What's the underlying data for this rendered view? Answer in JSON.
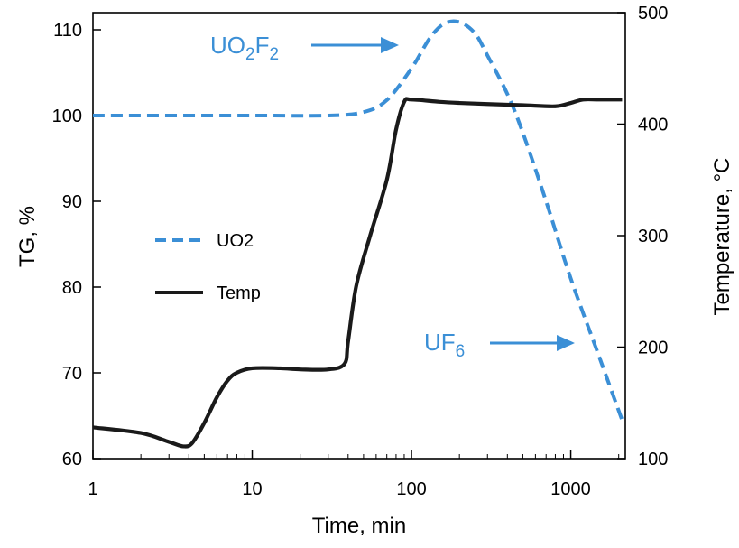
{
  "chart_data": {
    "type": "line",
    "xscale": "log",
    "xlim": [
      1,
      2200
    ],
    "ylim_left": [
      60,
      112
    ],
    "ylim_right": [
      100,
      500
    ],
    "xlabel": "Time, min",
    "ylabel_left": "TG, %",
    "ylabel_right": "Temperature, °C",
    "x_ticks": [
      1,
      10,
      100,
      1000
    ],
    "x_tick_labels": [
      "1",
      "10",
      "100",
      "1000"
    ],
    "y_left_ticks": [
      60,
      70,
      80,
      90,
      100,
      110
    ],
    "y_left_tick_labels": [
      "60",
      "70",
      "80",
      "90",
      "100",
      "110"
    ],
    "y_right_ticks": [
      100,
      200,
      300,
      400,
      500
    ],
    "y_right_tick_labels": [
      "100",
      "200",
      "300",
      "400",
      "500"
    ],
    "grid": false,
    "legend_position": "left-middle",
    "series": [
      {
        "name": "UO2",
        "axis": "left",
        "style": "dashed",
        "color": "#3b8fd6",
        "x": [
          1,
          10,
          30,
          50,
          70,
          100,
          130,
          160,
          200,
          250,
          300,
          400,
          500,
          700,
          1000,
          1500,
          2100
        ],
        "y": [
          100.0,
          100.0,
          100.0,
          100.4,
          101.8,
          105.5,
          109.0,
          110.7,
          110.9,
          109.6,
          107.0,
          102.5,
          98.0,
          90.0,
          81.0,
          72.0,
          64.5
        ]
      },
      {
        "name": "Temp",
        "axis": "right",
        "style": "solid",
        "color": "#1a1a1a",
        "x": [
          1,
          2,
          3,
          3.7,
          4.2,
          5,
          6,
          7,
          8,
          10,
          15,
          20,
          30,
          38,
          40,
          45,
          55,
          70,
          80,
          90,
          100,
          150,
          200,
          300,
          500,
          800,
          1000,
          1200,
          1500,
          2100
        ],
        "y": [
          128,
          123,
          115,
          111,
          114,
          132,
          155,
          170,
          177,
          181,
          181,
          180,
          180,
          185,
          205,
          255,
          300,
          350,
          395,
          420,
          422,
          420,
          419,
          418,
          417,
          416,
          419,
          422,
          422,
          422
        ]
      }
    ],
    "annotations": [
      {
        "text_main": "UO",
        "sub1": "2",
        "text_mid": "F",
        "sub2": "2",
        "arrow": "right"
      },
      {
        "text_main": "UF",
        "sub1": "6",
        "arrow": "right"
      }
    ]
  }
}
